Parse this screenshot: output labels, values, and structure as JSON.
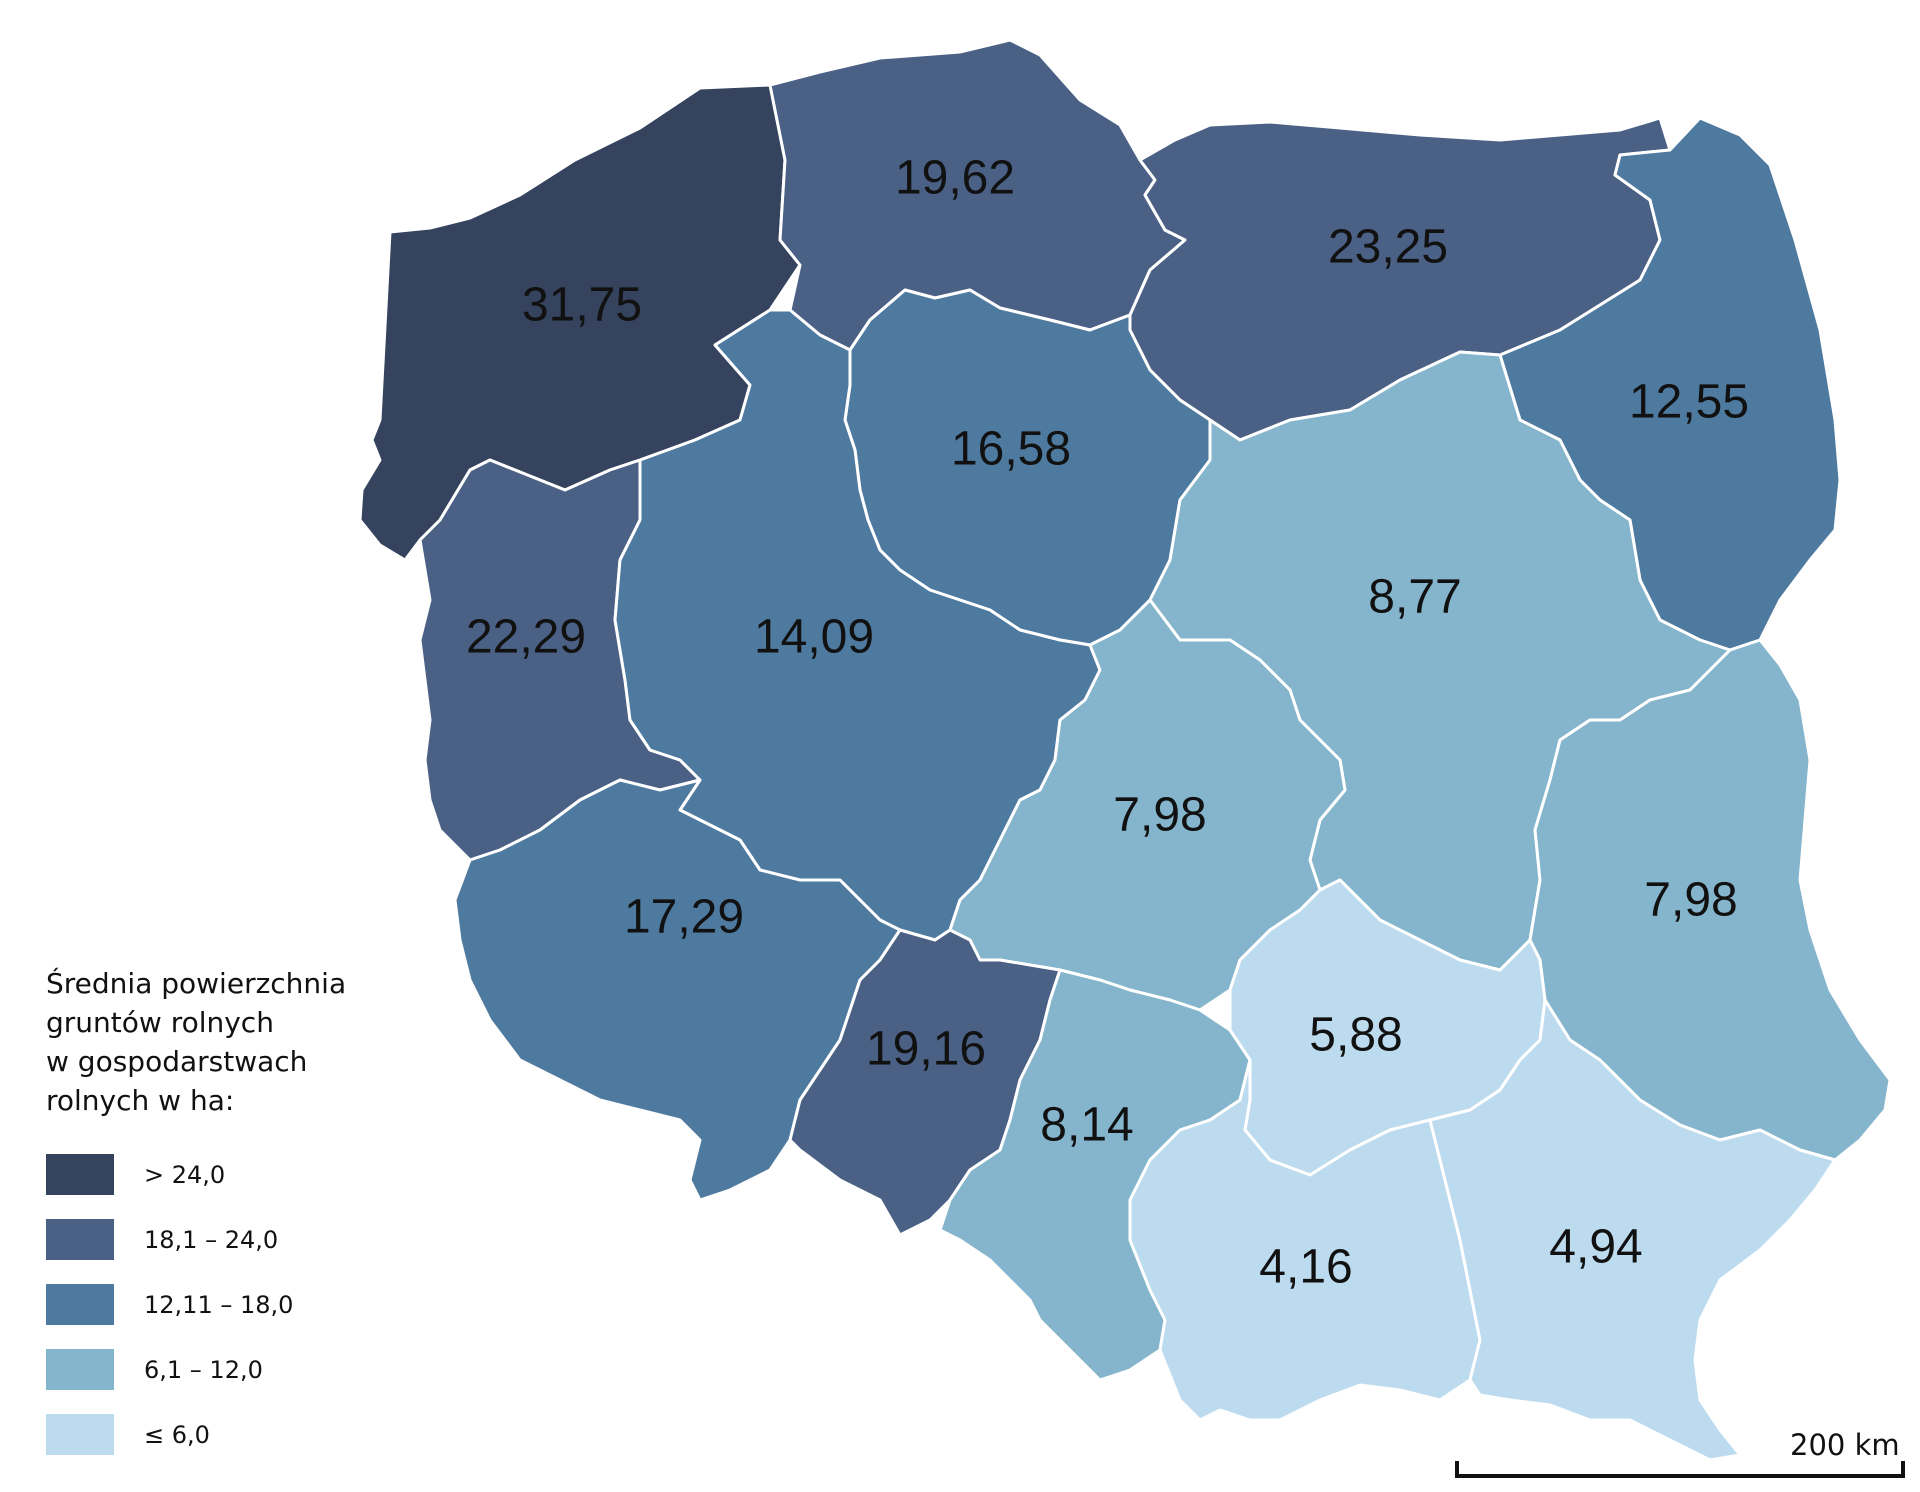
{
  "legend": {
    "title_lines": [
      "Średnia powierzchnia",
      "gruntów rolnych",
      "w gospodarstwach",
      "rolnych w ha:"
    ],
    "classes": [
      {
        "label": "> 24,0",
        "color": "#35435f"
      },
      {
        "label": "18,1 – 24,0",
        "color": "#4a6085"
      },
      {
        "label": "12,11 – 18,0",
        "color": "#4e7aa0"
      },
      {
        "label": "6,1 – 12,0",
        "color": "#84b5cc"
      },
      {
        "label": "≤ 6,0",
        "color": "#bddbee"
      }
    ]
  },
  "scale_bar": {
    "label": "200 km"
  },
  "regions": [
    {
      "id": "zachodniopomorskie",
      "value": "31,75",
      "class": 0
    },
    {
      "id": "pomorskie",
      "value": "19,62",
      "class": 1
    },
    {
      "id": "warminsko-mazurskie",
      "value": "23,25",
      "class": 1
    },
    {
      "id": "podlaskie",
      "value": "12,55",
      "class": 2
    },
    {
      "id": "kujawsko-pomorskie",
      "value": "16,58",
      "class": 2
    },
    {
      "id": "lubuskie",
      "value": "22,29",
      "class": 1
    },
    {
      "id": "wielkopolskie",
      "value": "14,09",
      "class": 2
    },
    {
      "id": "mazowieckie",
      "value": "8,77",
      "class": 3
    },
    {
      "id": "lodzkie",
      "value": "7,98",
      "class": 3
    },
    {
      "id": "lubelskie",
      "value": "7,98",
      "class": 3
    },
    {
      "id": "dolnoslaskie",
      "value": "17,29",
      "class": 2
    },
    {
      "id": "opolskie",
      "value": "19,16",
      "class": 1
    },
    {
      "id": "slaskie",
      "value": "8,14",
      "class": 3
    },
    {
      "id": "swietokrzyskie",
      "value": "5,88",
      "class": 4
    },
    {
      "id": "malopolskie",
      "value": "4,16",
      "class": 4
    },
    {
      "id": "podkarpackie",
      "value": "4,94",
      "class": 4
    }
  ]
}
